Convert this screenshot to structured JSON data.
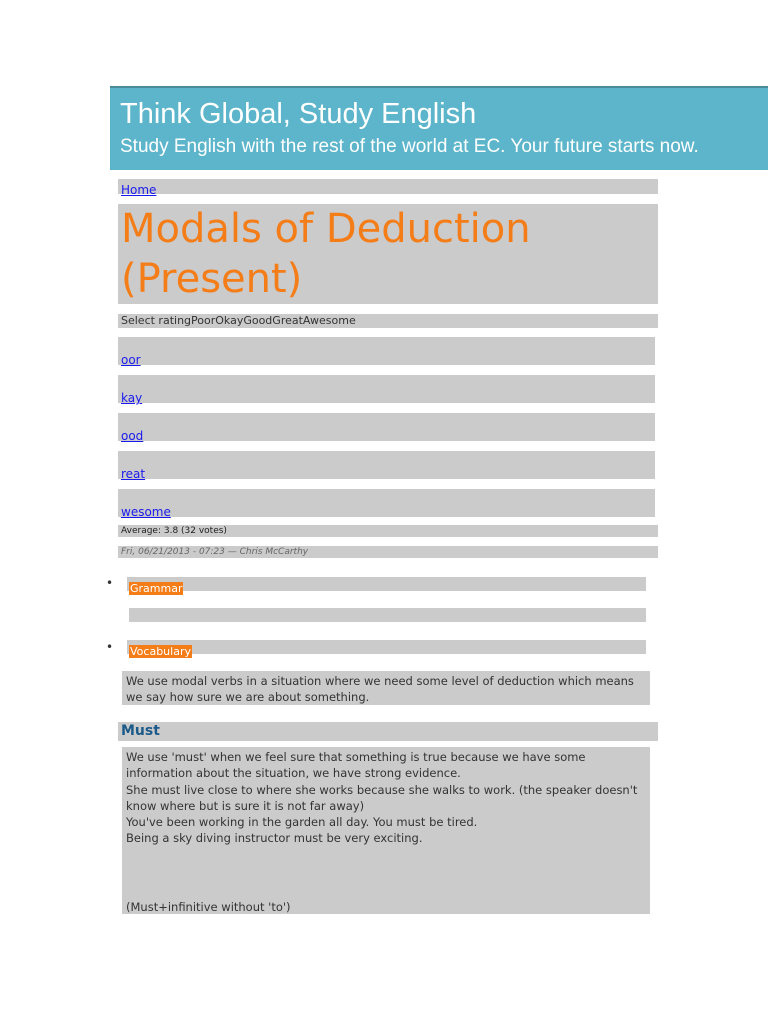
{
  "banner": {
    "title": "Think Global, Study English",
    "subtitle": "Study English with the rest of the world at EC. Your future starts now."
  },
  "breadcrumb": {
    "home": "Home"
  },
  "page_title_line1": "Modals of Deduction",
  "page_title_line2": "(Present)",
  "rating": {
    "select": "Select ratingPoorOkayGoodGreatAwesome",
    "options": [
      "oor",
      "kay",
      "ood",
      "reat",
      "wesome"
    ],
    "average": "Average: 3.8 (32 votes)"
  },
  "meta": "Fri, 06/21/2013 - 07:23 — Chris McCarthy",
  "tags": [
    "Grammar",
    "Vocabulary"
  ],
  "intro": "We use modal verbs in a situation where we need some level of deduction which means we say how sure we are about something.",
  "section": {
    "heading": "Must",
    "lines": [
      "We use 'must' when we feel sure that something is true because we have some information about the situation, we have strong evidence.",
      "She must live close to where she works because she walks to work. (the speaker doesn't know where but is sure it is not far away)",
      "You've been working in the garden all day. You must be tired.",
      "Being a sky diving instructor must be very exciting."
    ],
    "note": "(Must+infinitive without 'to')"
  }
}
